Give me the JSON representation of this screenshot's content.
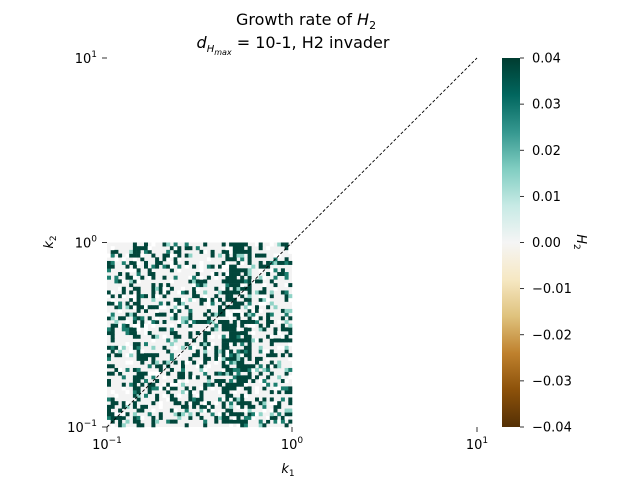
{
  "chart_data": {
    "type": "heatmap",
    "title": {
      "line1_text": "Growth rate of ",
      "line1_math": "H",
      "line1_sub": "2",
      "line2_math": "d",
      "line2_sub": "H",
      "line2_subsub": "max",
      "line2_text": " = 10-1, H2 invader"
    },
    "xlabel": "k",
    "xlabel_sub": "1",
    "ylabel": "k",
    "ylabel_sub": "2",
    "x_scale": "log",
    "y_scale": "log",
    "xlim": [
      0.1,
      10
    ],
    "ylim": [
      0.1,
      10
    ],
    "data_extent": {
      "k1": [
        0.1,
        1.0
      ],
      "k2": [
        0.1,
        1.0
      ]
    },
    "grid_size": [
      50,
      50
    ],
    "x_ticks": [
      {
        "value": 0.1,
        "base": "10",
        "exp": "−1"
      },
      {
        "value": 1,
        "base": "10",
        "exp": "0"
      },
      {
        "value": 10,
        "base": "10",
        "exp": "1"
      }
    ],
    "y_ticks": [
      {
        "value": 0.1,
        "base": "10",
        "exp": "−1"
      },
      {
        "value": 1,
        "base": "10",
        "exp": "0"
      },
      {
        "value": 10,
        "base": "10",
        "exp": "1"
      }
    ],
    "diagonal_line": {
      "from": [
        0.1,
        0.1
      ],
      "to": [
        10,
        10
      ],
      "style": "dashed",
      "color": "#000000"
    },
    "colorbar": {
      "label": "H",
      "label_sub": "2",
      "vmin": -0.04,
      "vmax": 0.04,
      "colormap": "BrBG",
      "ticks": [
        "0.04",
        "0.03",
        "0.02",
        "0.01",
        "0.00",
        "−0.01",
        "−0.02",
        "−0.03",
        "−0.04"
      ],
      "tick_values": [
        0.04,
        0.03,
        0.02,
        0.01,
        0.0,
        -0.01,
        -0.02,
        -0.03,
        -0.04
      ]
    },
    "cell_value_levels": {
      "white": 0.0,
      "light_grey": 0.0,
      "light_teal": 0.015,
      "mid_teal": 0.028,
      "dark_teal": 0.04
    }
  }
}
